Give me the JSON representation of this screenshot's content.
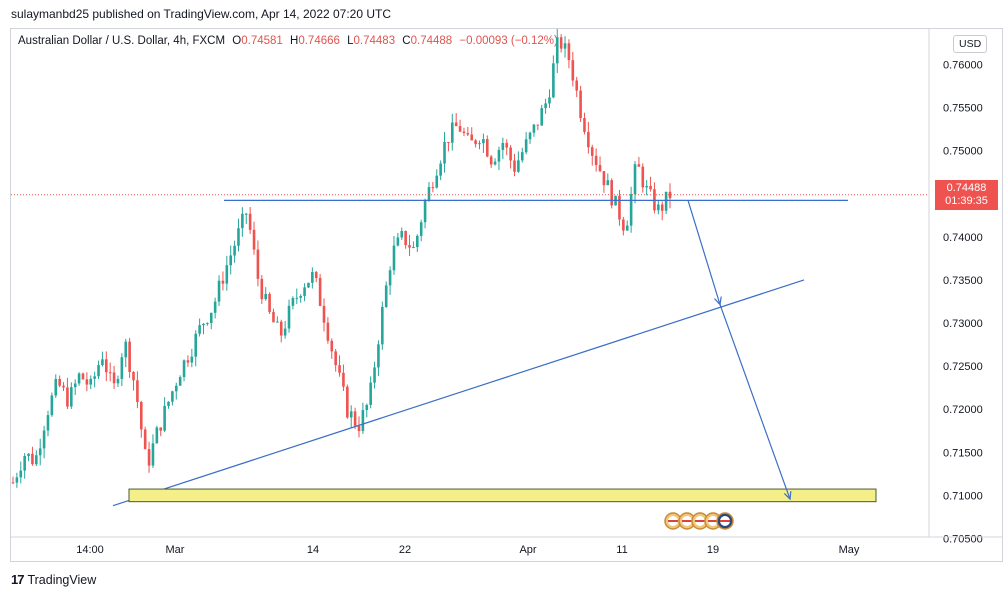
{
  "header": {
    "publisher": "sulaymanbd25 published on TradingView.com, Apr 14, 2022 07:20 UTC"
  },
  "legend": {
    "symbol": "Australian Dollar / U.S. Dollar, 4h, FXCM",
    "o_key": "O",
    "o_val": "0.74581",
    "h_key": "H",
    "h_val": "0.74666",
    "l_key": "L",
    "l_val": "0.74483",
    "c_key": "C",
    "c_val": "0.74488",
    "change": "−0.00093 (−0.12%)"
  },
  "currency": "USD",
  "last_price": {
    "value": "0.74488",
    "countdown": "01:39:35"
  },
  "footer": {
    "brand": "TradingView"
  },
  "colors": {
    "up": "#26a69a",
    "down": "#ef5350",
    "drawing": "#3b6ec8",
    "zone": "#f5ef8a"
  },
  "chart_data": {
    "type": "candlestick",
    "y_ticks": [
      "0.76000",
      "0.75500",
      "0.75000",
      "0.74000",
      "0.73500",
      "0.73000",
      "0.72500",
      "0.72000",
      "0.71500",
      "0.71000",
      "0.70500"
    ],
    "x_ticks": [
      "14:00",
      "Mar",
      "14",
      "22",
      "Apr",
      "11",
      "19",
      "May"
    ],
    "ylim": [
      0.7025,
      0.764
    ],
    "close_path": [
      0.7115,
      0.7148,
      0.714,
      0.7195,
      0.723,
      0.721,
      0.724,
      0.7225,
      0.7265,
      0.722,
      0.728,
      0.7225,
      0.7133,
      0.7175,
      0.721,
      0.7245,
      0.727,
      0.73,
      0.732,
      0.736,
      0.7395,
      0.743,
      0.7352,
      0.731,
      0.7285,
      0.7318,
      0.7345,
      0.7355,
      0.7305,
      0.725,
      0.72,
      0.718,
      0.721,
      0.73,
      0.738,
      0.74,
      0.7385,
      0.744,
      0.748,
      0.7515,
      0.753,
      0.7505,
      0.752,
      0.749,
      0.751,
      0.748,
      0.7505,
      0.753,
      0.756,
      0.763,
      0.7605,
      0.7545,
      0.75,
      0.747,
      0.744,
      0.741,
      0.7485,
      0.745,
      0.743,
      0.7449
    ],
    "annotations": [
      {
        "type": "horizontal-line",
        "price": 0.744,
        "from": "Mar",
        "to": "May"
      },
      {
        "type": "trendline",
        "from_price": 0.7088,
        "to_price": 0.735
      },
      {
        "type": "support-zone",
        "low": 0.7095,
        "high": 0.7105
      },
      {
        "type": "projection-arrows",
        "points": [
          0.744,
          0.7318,
          0.7098
        ]
      }
    ]
  }
}
